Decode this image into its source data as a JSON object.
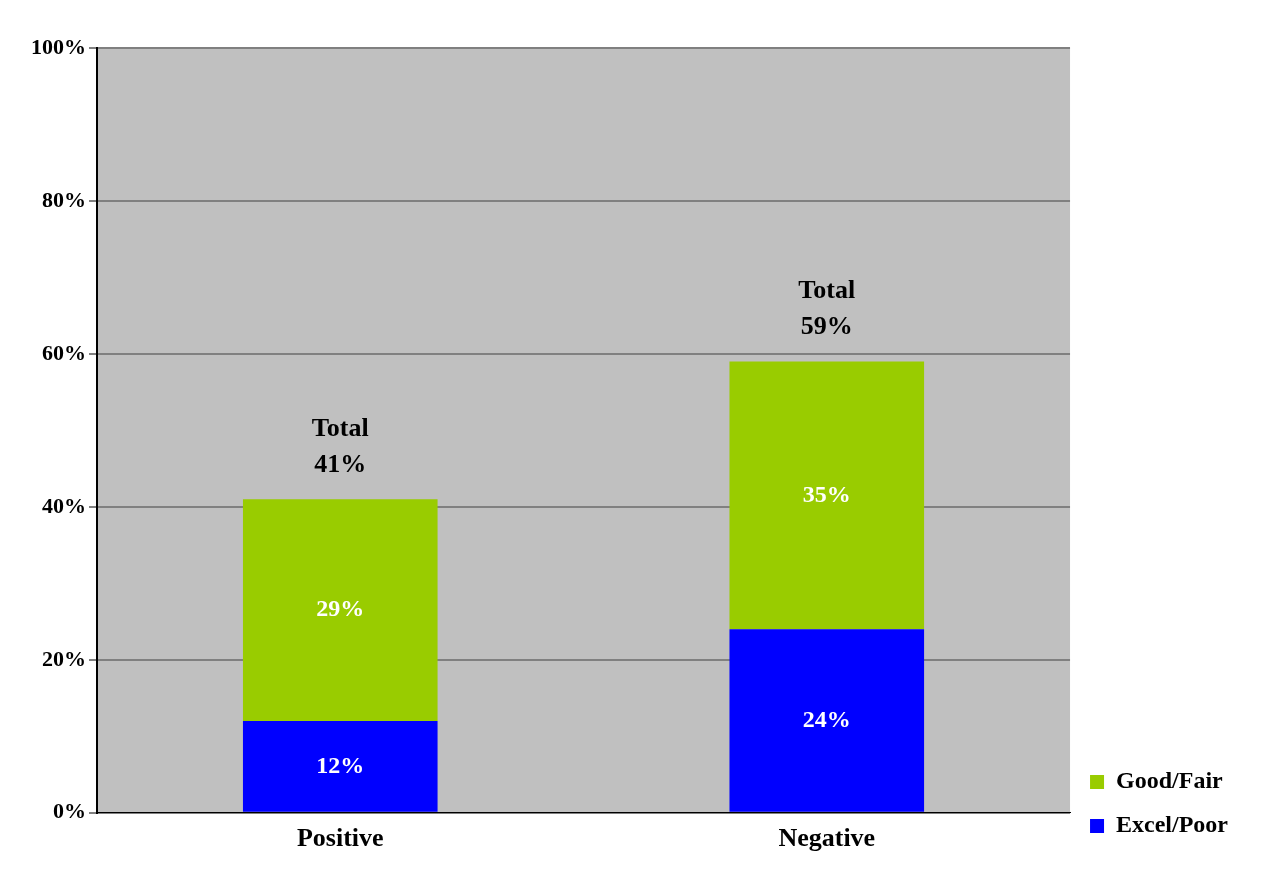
{
  "chart_data": {
    "type": "bar",
    "stacked": true,
    "categories": [
      "Positive",
      "Negative"
    ],
    "series": [
      {
        "name": "Excel/Poor",
        "color": "#0000ff",
        "values": [
          12,
          24
        ],
        "value_labels": [
          "12%",
          "24%"
        ]
      },
      {
        "name": "Good/Fair",
        "color": "#99cc00",
        "values": [
          29,
          35
        ],
        "value_labels": [
          "29%",
          "35%"
        ]
      }
    ],
    "totals": [
      "Total\n41%",
      "Total\n59%"
    ],
    "ylim": [
      0,
      100
    ],
    "yticks": [
      {
        "value": 0,
        "label": "0%"
      },
      {
        "value": 20,
        "label": "20%"
      },
      {
        "value": 40,
        "label": "40%"
      },
      {
        "value": 60,
        "label": "60%"
      },
      {
        "value": 80,
        "label": "80%"
      },
      {
        "value": 100,
        "label": "100%"
      }
    ],
    "grid": "y",
    "legend": "bottom right"
  }
}
